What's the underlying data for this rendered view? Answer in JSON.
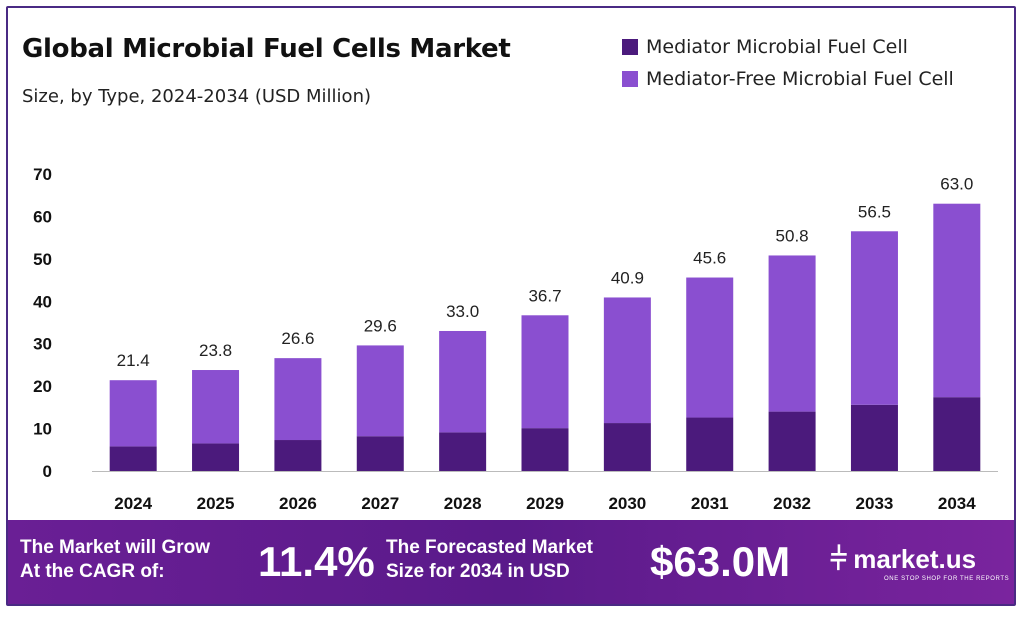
{
  "header": {
    "title": "Global Microbial Fuel Cells Market",
    "subtitle": "Size, by Type, 2024-2034 (USD Million)"
  },
  "colors": {
    "mediator": "#4b1a7c",
    "mediator_free": "#8a4fd0",
    "footer": "#6a1f95",
    "frame": "#4a2a84"
  },
  "chart_data": {
    "type": "bar",
    "stacked": true,
    "categories": [
      "2024",
      "2025",
      "2026",
      "2027",
      "2028",
      "2029",
      "2030",
      "2031",
      "2032",
      "2033",
      "2034"
    ],
    "series": [
      {
        "name": "Mediator Microbial Fuel Cell",
        "values": [
          5.8,
          6.5,
          7.3,
          8.2,
          9.1,
          10.1,
          11.3,
          12.6,
          14.0,
          15.6,
          17.4
        ]
      },
      {
        "name": "Mediator-Free Microbial Fuel Cell",
        "values": [
          15.6,
          17.3,
          19.3,
          21.4,
          23.9,
          26.6,
          29.6,
          33.0,
          36.8,
          40.9,
          45.6
        ]
      }
    ],
    "totals": [
      "21.4",
      "23.8",
      "26.6",
      "29.6",
      "33.0",
      "36.7",
      "40.9",
      "45.6",
      "50.8",
      "56.5",
      "63.0"
    ],
    "ylim": [
      0,
      70
    ],
    "yticks": [
      0,
      10,
      20,
      30,
      40,
      50,
      60,
      70
    ],
    "grid": false,
    "legend": "top-right"
  },
  "footer": {
    "cagr_label_line1": "The Market will Grow",
    "cagr_label_line2": "At the CAGR of:",
    "cagr_value": "11.4%",
    "forecast_label_line1": "The Forecasted Market",
    "forecast_label_line2": "Size for 2034 in USD",
    "forecast_value": "$63.0M",
    "logo_text": "market.us",
    "logo_tagline": "ONE STOP SHOP FOR THE REPORTS"
  }
}
